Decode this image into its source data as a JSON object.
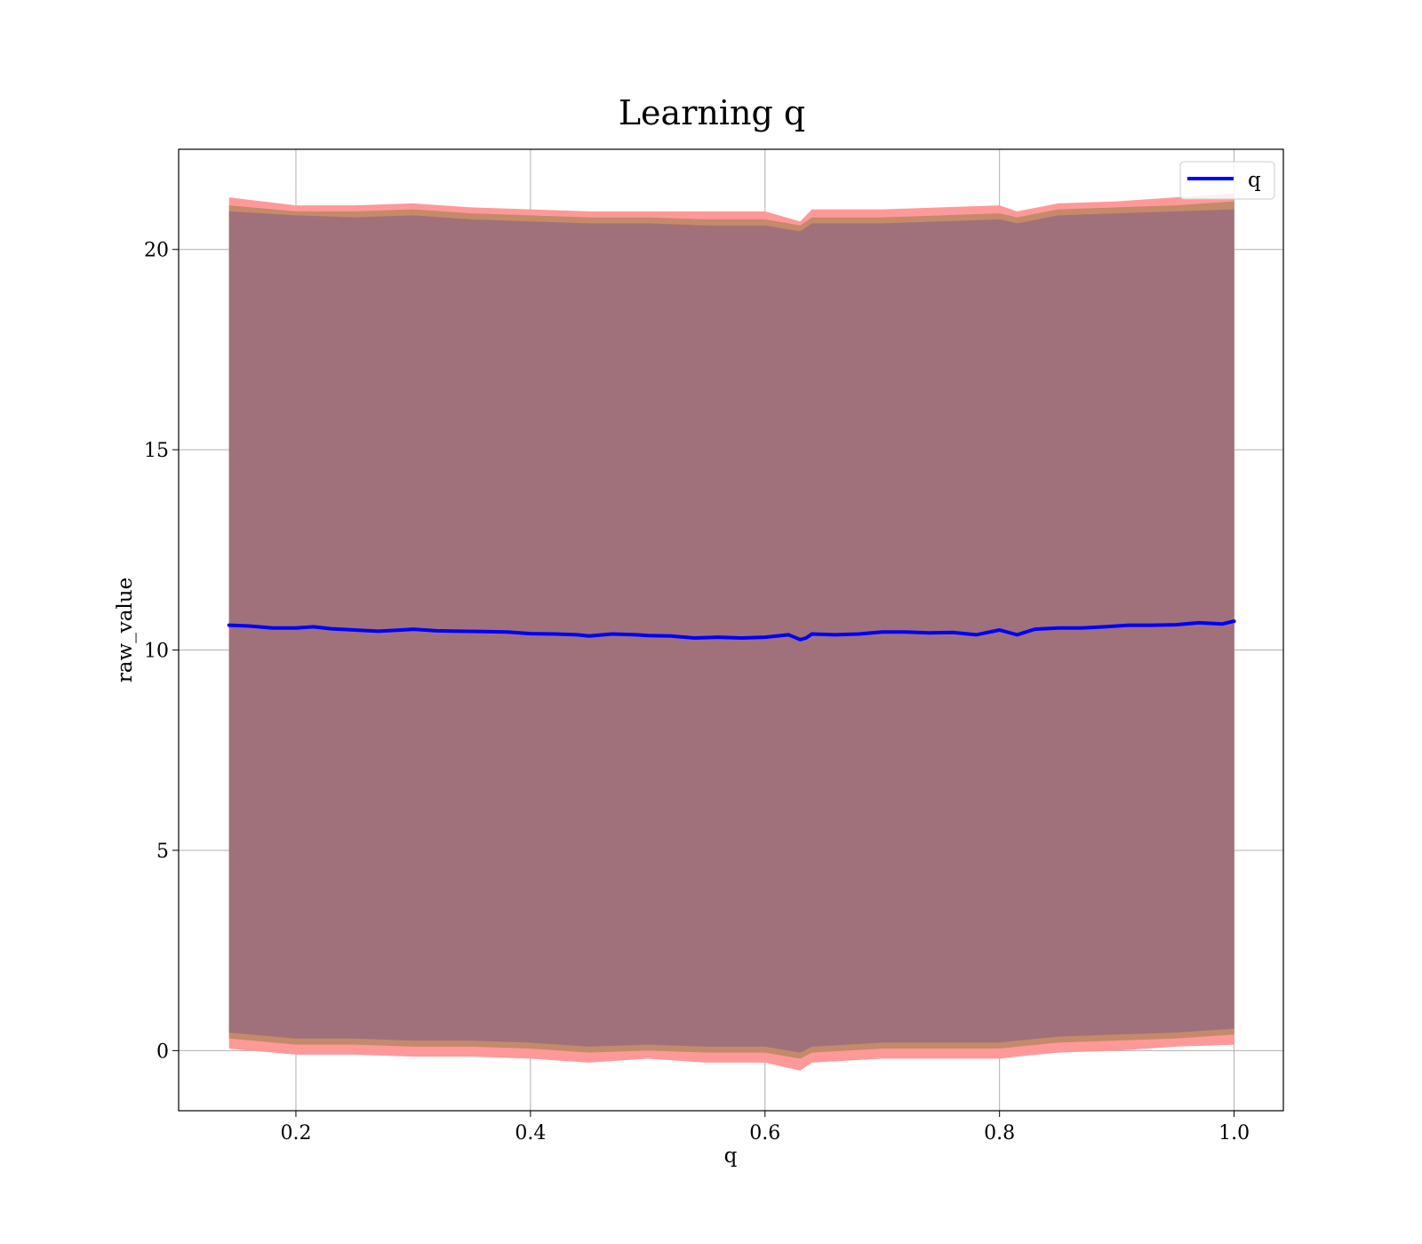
{
  "chart_data": {
    "type": "line",
    "title": "Learning q",
    "xlabel": "q",
    "ylabel": "raw_value",
    "xlim": [
      0.1,
      1.042
    ],
    "ylim": [
      -1.5,
      22.5
    ],
    "xticks": [
      0.2,
      0.4,
      0.6,
      0.8,
      1.0
    ],
    "xtick_labels": [
      "0.2",
      "0.4",
      "0.6",
      "0.8",
      "1.0"
    ],
    "yticks": [
      0,
      5,
      10,
      15,
      20
    ],
    "ytick_labels": [
      "0",
      "5",
      "10",
      "15",
      "20"
    ],
    "grid": true,
    "legend_position": "top-right",
    "series": [
      {
        "name": "q",
        "color": "#0000ff",
        "x": [
          0.143,
          0.16,
          0.18,
          0.2,
          0.215,
          0.23,
          0.25,
          0.27,
          0.29,
          0.3,
          0.32,
          0.34,
          0.36,
          0.38,
          0.4,
          0.42,
          0.44,
          0.45,
          0.47,
          0.49,
          0.5,
          0.52,
          0.54,
          0.56,
          0.58,
          0.6,
          0.62,
          0.63,
          0.635,
          0.64,
          0.66,
          0.68,
          0.7,
          0.72,
          0.74,
          0.76,
          0.78,
          0.8,
          0.815,
          0.83,
          0.85,
          0.87,
          0.89,
          0.91,
          0.93,
          0.95,
          0.97,
          0.99,
          1.0
        ],
        "values": [
          10.62,
          10.6,
          10.55,
          10.55,
          10.58,
          10.53,
          10.5,
          10.47,
          10.5,
          10.52,
          10.48,
          10.47,
          10.46,
          10.45,
          10.41,
          10.4,
          10.38,
          10.35,
          10.4,
          10.38,
          10.36,
          10.35,
          10.3,
          10.32,
          10.3,
          10.32,
          10.38,
          10.26,
          10.3,
          10.4,
          10.38,
          10.4,
          10.45,
          10.45,
          10.43,
          10.44,
          10.38,
          10.5,
          10.38,
          10.52,
          10.55,
          10.55,
          10.58,
          10.62,
          10.62,
          10.63,
          10.68,
          10.65,
          10.72
        ]
      }
    ],
    "bands": [
      {
        "color": "#ff9999",
        "x": [
          0.143,
          0.2,
          0.25,
          0.3,
          0.35,
          0.4,
          0.45,
          0.5,
          0.55,
          0.6,
          0.63,
          0.64,
          0.7,
          0.75,
          0.8,
          0.815,
          0.85,
          0.9,
          0.95,
          1.0
        ],
        "upper": [
          21.3,
          21.1,
          21.1,
          21.15,
          21.05,
          21.0,
          20.95,
          20.95,
          20.95,
          20.95,
          20.7,
          21.0,
          21.0,
          21.05,
          21.1,
          20.95,
          21.15,
          21.2,
          21.3,
          21.4
        ],
        "lower": [
          0.05,
          -0.1,
          -0.1,
          -0.15,
          -0.15,
          -0.2,
          -0.3,
          -0.2,
          -0.3,
          -0.3,
          -0.5,
          -0.3,
          -0.2,
          -0.2,
          -0.2,
          -0.15,
          -0.05,
          0.0,
          0.1,
          0.15
        ]
      },
      {
        "color": "#c48a6a",
        "x": [
          0.143,
          0.2,
          0.25,
          0.3,
          0.35,
          0.4,
          0.45,
          0.5,
          0.55,
          0.6,
          0.63,
          0.64,
          0.7,
          0.75,
          0.8,
          0.815,
          0.85,
          0.9,
          0.95,
          1.0
        ],
        "upper": [
          21.1,
          20.95,
          20.95,
          21.0,
          20.9,
          20.85,
          20.8,
          20.8,
          20.75,
          20.75,
          20.6,
          20.8,
          20.8,
          20.85,
          20.9,
          20.8,
          21.0,
          21.05,
          21.1,
          21.2
        ],
        "lower": [
          0.3,
          0.15,
          0.15,
          0.1,
          0.1,
          0.05,
          -0.05,
          0.0,
          -0.05,
          -0.05,
          -0.2,
          -0.05,
          0.05,
          0.05,
          0.05,
          0.1,
          0.2,
          0.25,
          0.3,
          0.4
        ]
      },
      {
        "color": "#a0717a",
        "x": [
          0.143,
          0.2,
          0.25,
          0.3,
          0.35,
          0.4,
          0.45,
          0.5,
          0.55,
          0.6,
          0.63,
          0.64,
          0.7,
          0.75,
          0.8,
          0.815,
          0.85,
          0.9,
          0.95,
          1.0
        ],
        "upper": [
          20.95,
          20.85,
          20.8,
          20.85,
          20.75,
          20.7,
          20.65,
          20.65,
          20.6,
          20.6,
          20.45,
          20.65,
          20.65,
          20.7,
          20.75,
          20.65,
          20.85,
          20.9,
          20.95,
          21.0
        ],
        "lower": [
          0.45,
          0.3,
          0.3,
          0.25,
          0.25,
          0.2,
          0.1,
          0.15,
          0.1,
          0.1,
          -0.05,
          0.1,
          0.2,
          0.2,
          0.2,
          0.25,
          0.35,
          0.4,
          0.45,
          0.55
        ]
      }
    ]
  }
}
